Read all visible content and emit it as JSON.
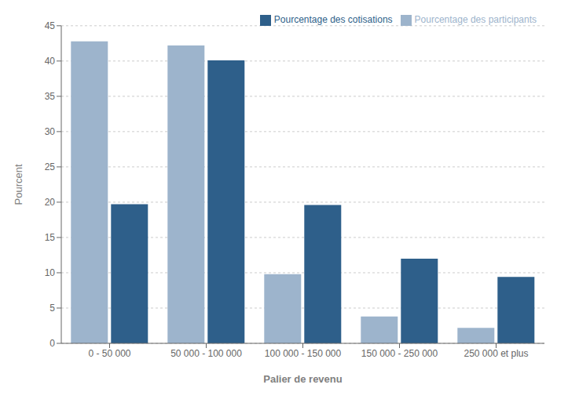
{
  "chart_data": {
    "type": "bar",
    "categories": [
      "0 - 50 000",
      "50 000 - 100 000",
      "100 000 - 150 000",
      "150 000 - 250 000",
      "250 000 et plus"
    ],
    "series": [
      {
        "name": "Pourcentage des participants",
        "color": "#9db4cc",
        "values": [
          42.8,
          42.2,
          9.8,
          3.8,
          2.2
        ]
      },
      {
        "name": "Pourcentage des cotisations",
        "color": "#2e5f8a",
        "values": [
          19.7,
          40.1,
          19.6,
          12.0,
          9.4
        ]
      }
    ],
    "xlabel": "Palier de revenu",
    "ylabel": "Pourcent",
    "ylim": [
      0,
      45
    ],
    "yticks": [
      0,
      5,
      10,
      15,
      20,
      25,
      30,
      35,
      40,
      45
    ],
    "grid": true,
    "legend": "upper right"
  }
}
